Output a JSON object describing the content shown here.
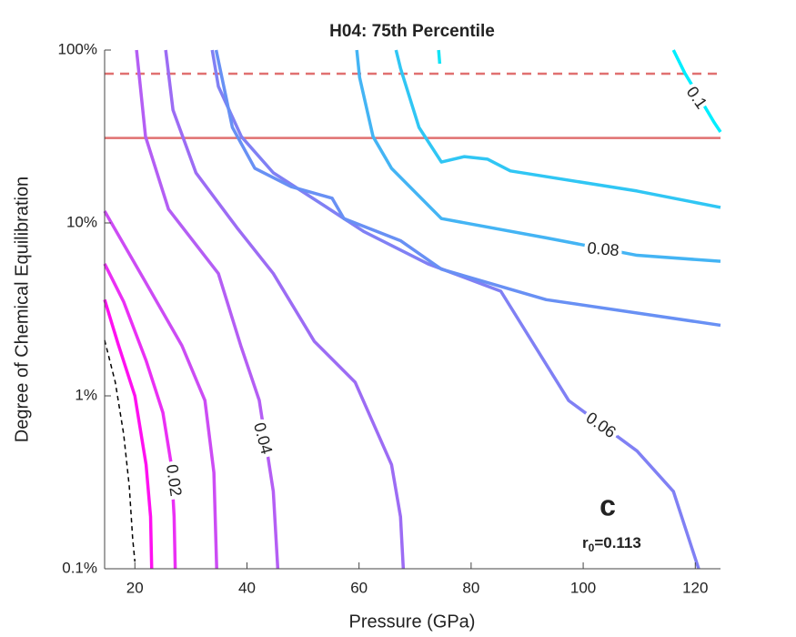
{
  "chart_data": {
    "type": "contour",
    "title": "H04: 75th Percentile",
    "x_label": "Pressure (GPa)",
    "y_label": "Degree of Chemical Equilibration",
    "xlim": [
      14.6,
      124.5
    ],
    "ylim": [
      0.1,
      100
    ],
    "log_y": true,
    "xticks": [
      20,
      40,
      60,
      80,
      100,
      120
    ],
    "yticks": [
      {
        "value": 0.1,
        "label": "0.1%"
      },
      {
        "value": 1,
        "label": "1%"
      },
      {
        "value": 10,
        "label": "10%"
      },
      {
        "value": 100,
        "label": "100%"
      }
    ],
    "series": [
      {
        "color": "#000000",
        "dash": true,
        "x": [
          14.6,
          16.5,
          18,
          19,
          19.6,
          20
        ],
        "y": [
          2.1,
          1.2,
          0.6,
          0.3,
          0.15,
          0.11
        ]
      },
      {
        "color": "#ff10f0",
        "x": [
          14.6,
          17,
          20,
          22,
          22.8,
          23
        ],
        "y": [
          3.6,
          2,
          1,
          0.4,
          0.2,
          0.1
        ]
      },
      {
        "color": "#ea30f4",
        "label": "0.02",
        "x": [
          14.6,
          18,
          22,
          25,
          26.5,
          27,
          27.2
        ],
        "y": [
          5.8,
          3.5,
          1.6,
          0.8,
          0.4,
          0.2,
          0.1
        ]
      },
      {
        "color": "#cc4cf4",
        "x": [
          14.6,
          21.9,
          28.4,
          32.5,
          34.1,
          34.6
        ],
        "y": [
          11.7,
          4.55,
          1.95,
          0.94,
          0.36,
          0.1
        ]
      },
      {
        "color": "#b45ef4",
        "label": "0.04",
        "x": [
          20.3,
          21.9,
          26,
          34.9,
          38.9,
          42.2,
          44.7,
          45.5
        ],
        "y": [
          100,
          31.6,
          12,
          5.1,
          1.95,
          0.94,
          0.28,
          0.1
        ]
      },
      {
        "color": "#9c6cf4",
        "x": [
          25.5,
          26.8,
          30.9,
          38.2,
          44.7,
          52,
          59.3,
          65.8,
          67.4,
          67.9
        ],
        "y": [
          100,
          45,
          19.5,
          9.4,
          5.1,
          2.07,
          1.2,
          0.4,
          0.2,
          0.1
        ]
      },
      {
        "color": "#8080f4",
        "label": "0.06",
        "x": [
          33.8,
          34.9,
          39,
          44.7,
          53.6,
          60.9,
          72.3,
          85.3,
          97.4,
          109.6,
          116.1,
          120.6
        ],
        "y": [
          100,
          61.6,
          31.6,
          19.5,
          12.7,
          8.9,
          5.8,
          4.03,
          0.94,
          0.48,
          0.28,
          0.1
        ]
      },
      {
        "color": "#6890f4",
        "x": [
          34.5,
          37.4,
          41.4,
          47.9,
          55.2,
          57.3,
          67.4,
          74.7,
          93.4,
          124.5
        ],
        "y": [
          100,
          35.7,
          20.7,
          16.2,
          13.9,
          10.6,
          7.9,
          5.4,
          3.6,
          2.56
        ]
      },
      {
        "color": "#44b4f4",
        "label": "0.08",
        "x": [
          59.6,
          60.1,
          62.5,
          65.8,
          74.7,
          93.4,
          109.6,
          124.5
        ],
        "y": [
          100,
          69.5,
          31.6,
          20.7,
          10.6,
          8.2,
          6.5,
          6.0
        ]
      },
      {
        "color": "#30c6f4",
        "x": [
          66.6,
          67.4,
          70.7,
          74.7,
          78.8,
          82.9,
          87,
          109.6,
          124.5
        ],
        "y": [
          100,
          78.5,
          35.7,
          22.5,
          24.2,
          23.4,
          20,
          15.3,
          12.3
        ]
      },
      {
        "color": "#12e4f6",
        "x": [
          74.2,
          74.4
        ],
        "y": [
          100,
          83.4
        ]
      },
      {
        "color": "#00eeff",
        "label": "0.1",
        "x": [
          116.1,
          118.1,
          123.4,
          124.5
        ],
        "y": [
          100,
          73.9,
          38,
          33.6
        ]
      }
    ],
    "reference_lines": [
      {
        "y": 73,
        "color": "#e07070",
        "dash": true
      },
      {
        "y": 31,
        "color": "#e07070",
        "dash": false
      }
    ],
    "annotation": {
      "panel": "c",
      "symbol": "r",
      "subscript": "0",
      "value_text": "=0.113"
    }
  }
}
